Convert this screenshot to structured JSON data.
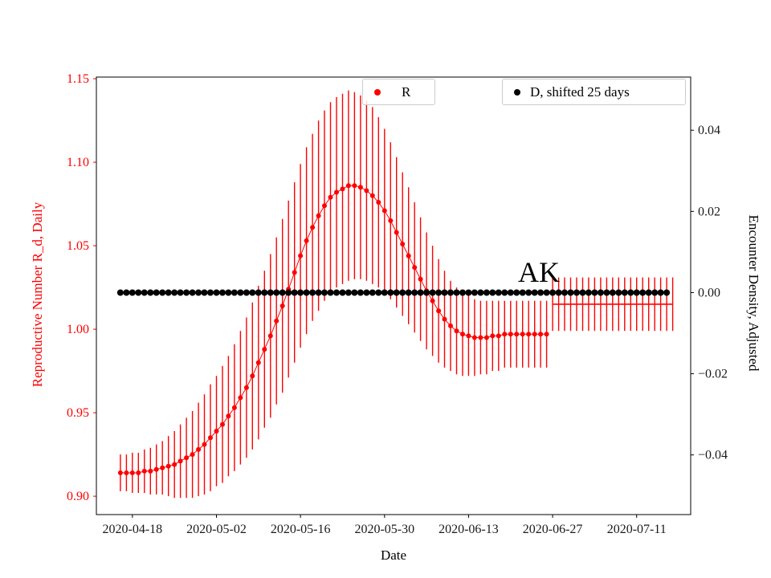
{
  "colors": {
    "r_series": "#ff0000",
    "d_series": "#000000",
    "left_axis": "#ff0000",
    "right_axis": "#000000",
    "legend_border": "#cccccc"
  },
  "legends": [
    {
      "label": "R",
      "color": "#ff0000"
    },
    {
      "label": "D, shifted 25 days",
      "color": "#000000"
    }
  ],
  "chart_data": {
    "type": "scatter",
    "annotation": {
      "text": "AK"
    },
    "xlabel": "Date",
    "ylabel_left": "Reproductive Number R_d, Daily",
    "ylabel_right": "Encounter Density, Adjusted",
    "grid": false,
    "x_range": [
      "2020-04-12",
      "2020-07-20"
    ],
    "y_left_range": [
      0.889,
      1.151
    ],
    "y_right_range": [
      -0.0547,
      0.0531
    ],
    "x_ticks": [
      "2020-04-18",
      "2020-05-02",
      "2020-05-16",
      "2020-05-30",
      "2020-06-13",
      "2020-06-27",
      "2020-07-11"
    ],
    "y_left_ticks": [
      0.9,
      0.95,
      1.0,
      1.05,
      1.1,
      1.15
    ],
    "y_right_ticks": [
      -0.04,
      -0.02,
      0.0,
      0.02,
      0.04
    ],
    "series": [
      {
        "name": "R",
        "axis": "left",
        "color": "#ff0000",
        "marker": "circle",
        "marker_radius": 3,
        "line_width": 1,
        "start_date": "2020-04-16",
        "cadence_days": 1,
        "values": [
          0.914,
          0.914,
          0.914,
          0.914,
          0.915,
          0.915,
          0.916,
          0.917,
          0.918,
          0.919,
          0.921,
          0.923,
          0.925,
          0.928,
          0.931,
          0.935,
          0.939,
          0.943,
          0.948,
          0.953,
          0.959,
          0.965,
          0.972,
          0.98,
          0.988,
          0.996,
          1.005,
          1.014,
          1.024,
          1.034,
          1.044,
          1.053,
          1.061,
          1.068,
          1.074,
          1.079,
          1.082,
          1.084,
          1.086,
          1.086,
          1.085,
          1.083,
          1.08,
          1.076,
          1.071,
          1.065,
          1.058,
          1.051,
          1.044,
          1.037,
          1.03,
          1.023,
          1.017,
          1.011,
          1.006,
          1.002,
          0.999,
          0.997,
          0.996,
          0.995,
          0.995,
          0.995,
          0.996,
          0.996,
          0.997,
          0.997,
          0.997,
          0.997,
          0.997,
          0.997,
          0.997,
          0.997
        ],
        "errors": [
          0.011,
          0.011,
          0.012,
          0.012,
          0.013,
          0.014,
          0.015,
          0.016,
          0.018,
          0.02,
          0.022,
          0.024,
          0.026,
          0.028,
          0.03,
          0.032,
          0.033,
          0.035,
          0.036,
          0.038,
          0.04,
          0.042,
          0.044,
          0.046,
          0.047,
          0.049,
          0.05,
          0.052,
          0.053,
          0.054,
          0.055,
          0.056,
          0.056,
          0.057,
          0.057,
          0.057,
          0.057,
          0.057,
          0.057,
          0.056,
          0.055,
          0.054,
          0.053,
          0.051,
          0.049,
          0.047,
          0.045,
          0.043,
          0.041,
          0.039,
          0.037,
          0.035,
          0.033,
          0.031,
          0.029,
          0.027,
          0.026,
          0.025,
          0.024,
          0.023,
          0.022,
          0.022,
          0.021,
          0.021,
          0.02,
          0.02,
          0.02,
          0.02,
          0.02,
          0.02,
          0.02,
          0.02
        ]
      },
      {
        "name": "R forecast",
        "axis": "left",
        "color": "#ff0000",
        "marker": "none",
        "line_width": 1.6,
        "start_date": "2020-06-27",
        "cadence_days": 1,
        "count": 21,
        "constant_value": 1.015,
        "constant_error": 0.016
      },
      {
        "name": "D, shifted 25 days",
        "axis": "right",
        "color": "#000000",
        "marker": "circle",
        "marker_radius": 4,
        "line_width": 1.5,
        "start_date": "2020-04-16",
        "cadence_days": 1,
        "count": 92,
        "constant_value": 0.0
      }
    ]
  }
}
